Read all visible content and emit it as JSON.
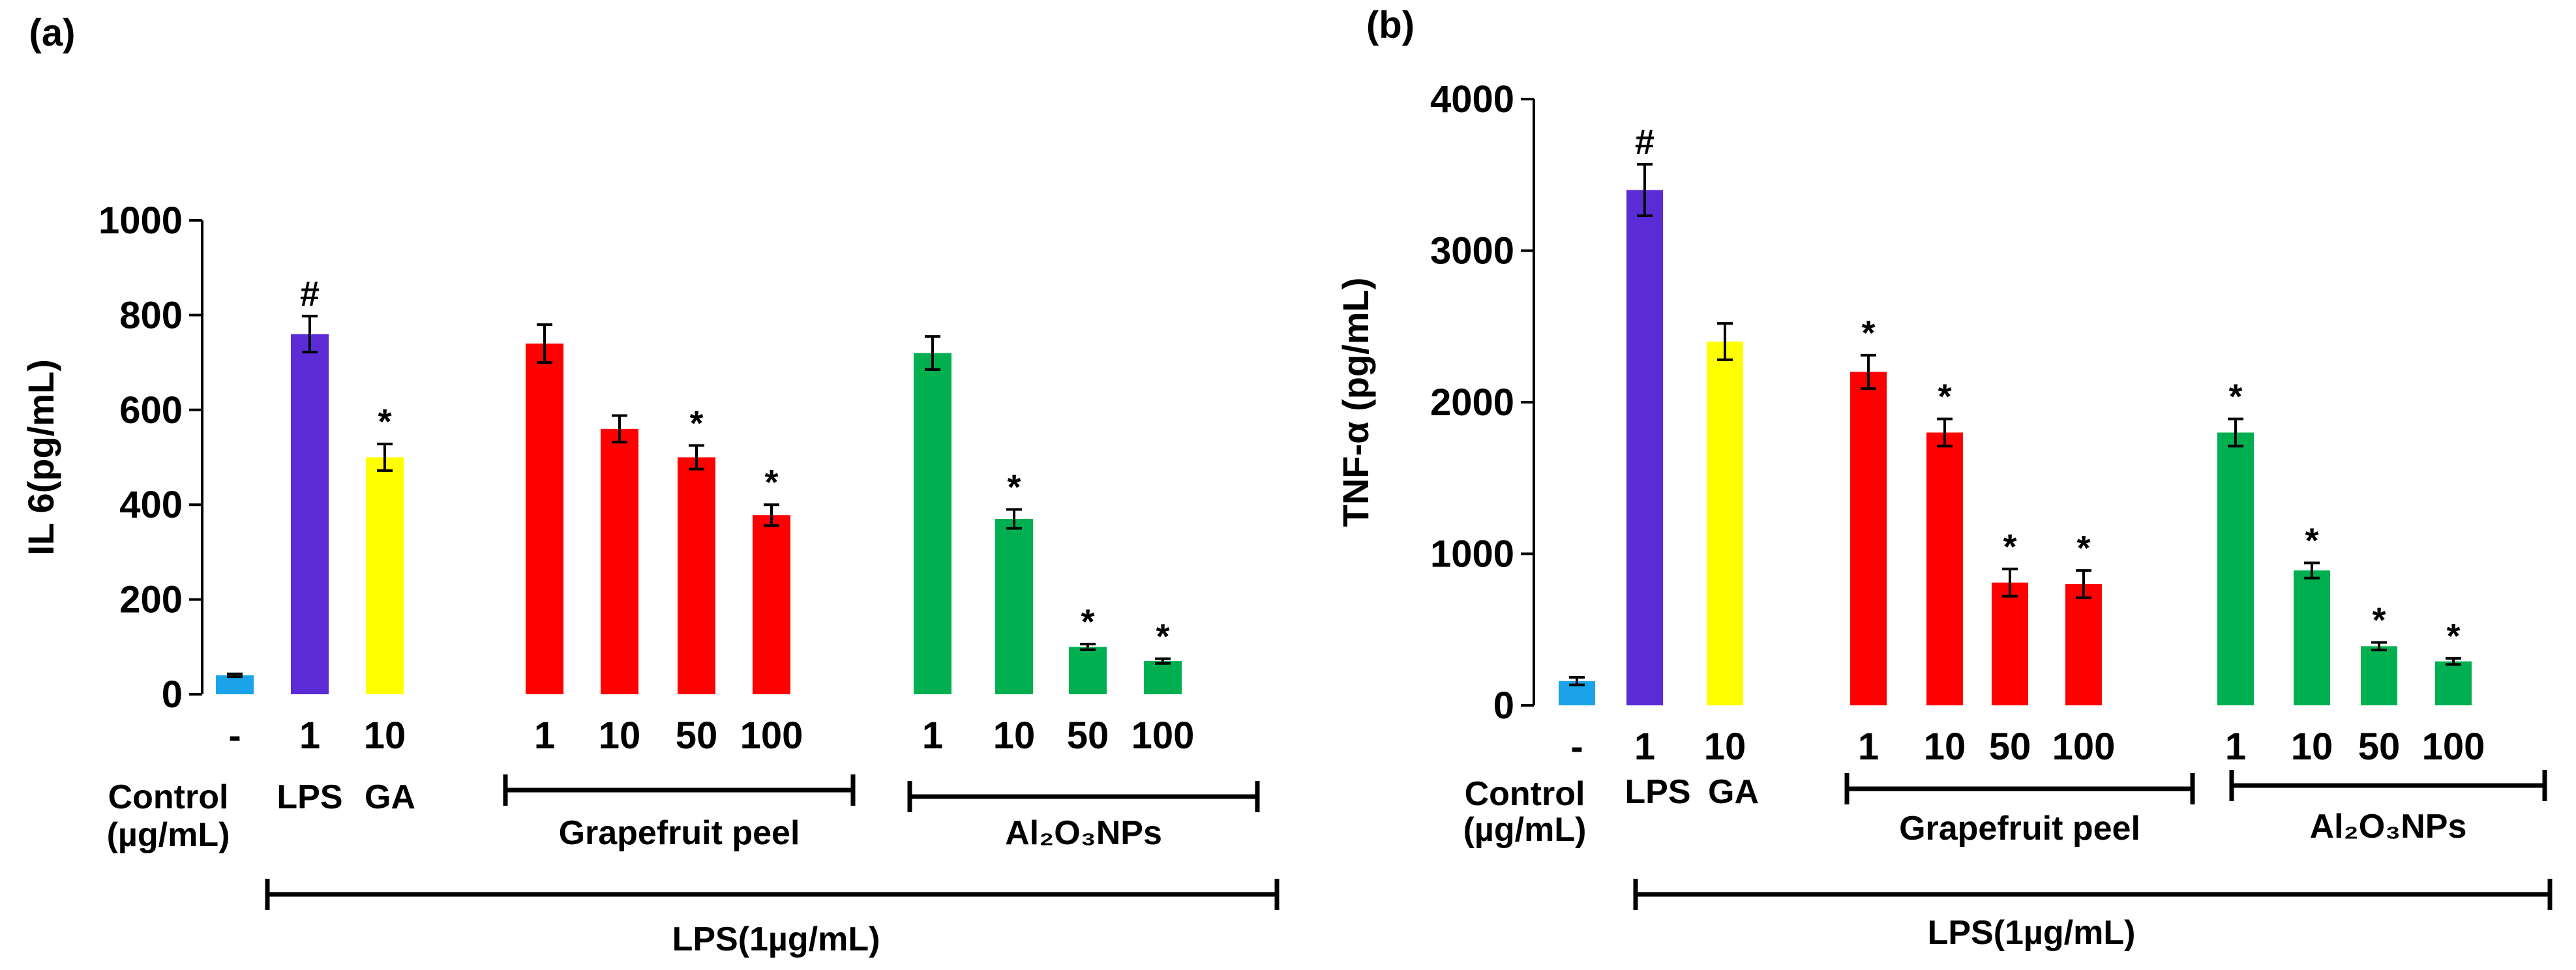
{
  "chart_data": [
    {
      "type": "bar",
      "panel_label": "(a)",
      "ylabel": "IL 6(pg/mL)",
      "ylim": [
        0,
        1000
      ],
      "yticks": [
        0,
        200,
        400,
        600,
        800,
        1000
      ],
      "bars": [
        {
          "x_label": "-",
          "value": 40,
          "error": 3,
          "color": "#1aa3e8",
          "sig": ""
        },
        {
          "x_label": "1",
          "value": 760,
          "error": 38,
          "color": "#5b2bd6",
          "sig": "#"
        },
        {
          "x_label": "10",
          "value": 500,
          "error": 28,
          "color": "#ffff00",
          "sig": "*"
        },
        {
          "x_label": "1",
          "value": 740,
          "error": 40,
          "color": "#ff0000",
          "sig": ""
        },
        {
          "x_label": "10",
          "value": 560,
          "error": 28,
          "color": "#ff0000",
          "sig": ""
        },
        {
          "x_label": "50",
          "value": 500,
          "error": 25,
          "color": "#ff0000",
          "sig": "*"
        },
        {
          "x_label": "100",
          "value": 378,
          "error": 22,
          "color": "#ff0000",
          "sig": "*"
        },
        {
          "x_label": "1",
          "value": 720,
          "error": 35,
          "color": "#00b050",
          "sig": ""
        },
        {
          "x_label": "10",
          "value": 370,
          "error": 20,
          "color": "#00b050",
          "sig": "*"
        },
        {
          "x_label": "50",
          "value": 100,
          "error": 6,
          "color": "#00b050",
          "sig": "*"
        },
        {
          "x_label": "100",
          "value": 70,
          "error": 5,
          "color": "#00b050",
          "sig": "*"
        }
      ],
      "control_label_line1": "Control",
      "control_label_line2": "(µg/mL)",
      "lps_label": "LPS",
      "ga_label": "GA",
      "group_grapefruit": "Grapefruit peel",
      "group_al2o3": "Al₂O₃NPs",
      "lps_bracket_label": "LPS(1µg/mL)"
    },
    {
      "type": "bar",
      "panel_label": "(b)",
      "ylabel": "TNF-α (pg/mL)",
      "ylim": [
        0,
        4000
      ],
      "yticks": [
        0,
        1000,
        2000,
        3000,
        4000
      ],
      "bars": [
        {
          "x_label": "-",
          "value": 160,
          "error": 25,
          "color": "#1aa3e8",
          "sig": ""
        },
        {
          "x_label": "1",
          "value": 3400,
          "error": 170,
          "color": "#5b2bd6",
          "sig": "#"
        },
        {
          "x_label": "10",
          "value": 2400,
          "error": 120,
          "color": "#ffff00",
          "sig": ""
        },
        {
          "x_label": "1",
          "value": 2200,
          "error": 110,
          "color": "#ff0000",
          "sig": "*"
        },
        {
          "x_label": "10",
          "value": 1800,
          "error": 90,
          "color": "#ff0000",
          "sig": "*"
        },
        {
          "x_label": "50",
          "value": 810,
          "error": 90,
          "color": "#ff0000",
          "sig": "*"
        },
        {
          "x_label": "100",
          "value": 800,
          "error": 90,
          "color": "#ff0000",
          "sig": "*"
        },
        {
          "x_label": "1",
          "value": 1800,
          "error": 90,
          "color": "#00b050",
          "sig": "*"
        },
        {
          "x_label": "10",
          "value": 890,
          "error": 50,
          "color": "#00b050",
          "sig": "*"
        },
        {
          "x_label": "50",
          "value": 390,
          "error": 25,
          "color": "#00b050",
          "sig": "*"
        },
        {
          "x_label": "100",
          "value": 290,
          "error": 20,
          "color": "#00b050",
          "sig": "*"
        }
      ],
      "control_label_line1": "Control",
      "control_label_line2": "(µg/mL)",
      "lps_label": "LPS",
      "ga_label": "GA",
      "group_grapefruit": "Grapefruit peel",
      "group_al2o3": "Al₂O₃NPs",
      "lps_bracket_label": "LPS(1µg/mL)"
    }
  ]
}
